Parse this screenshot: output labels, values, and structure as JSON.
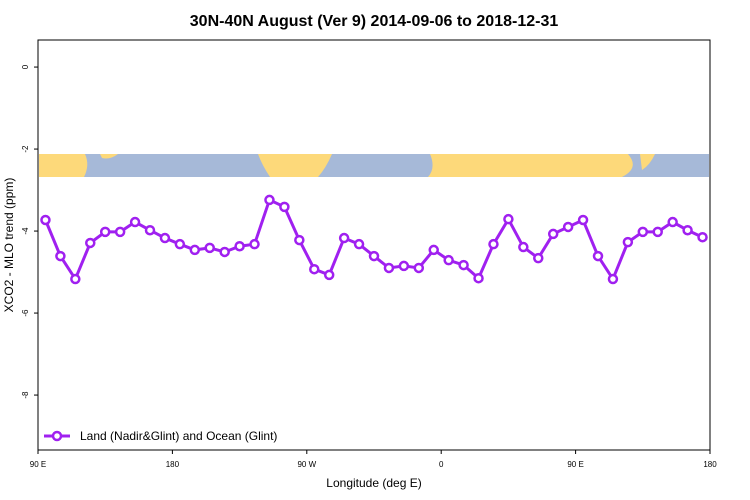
{
  "chart_data": {
    "type": "line",
    "title": "30N-40N August (Ver 9)   2014-09-06 to 2018-12-31",
    "x_label": "Longitude (deg E)",
    "y_label": "XCO2 - MLO trend (ppm)",
    "x": [
      95,
      105,
      115,
      125,
      135,
      145,
      155,
      165,
      175,
      185,
      195,
      205,
      215,
      225,
      235,
      245,
      255,
      265,
      275,
      285,
      295,
      305,
      315,
      325,
      335,
      345,
      355,
      365,
      375,
      385,
      395,
      405,
      415,
      425,
      435,
      445,
      455,
      465,
      475,
      485,
      495,
      505,
      515,
      525,
      535
    ],
    "series": [
      {
        "name": "Land (Nadir&Glint) and Ocean (Glint)",
        "color": "#a020f0",
        "values": [
          -3.73,
          -4.61,
          -5.17,
          -4.29,
          -4.02,
          -4.02,
          -3.78,
          -3.98,
          -4.17,
          -4.32,
          -4.46,
          -4.41,
          -4.51,
          -4.37,
          -4.32,
          -3.24,
          -3.41,
          -4.22,
          -4.93,
          -5.07,
          -4.17,
          -4.32,
          -4.61,
          -4.9,
          -4.85,
          -4.9,
          -4.46,
          -4.71,
          -4.83,
          -5.15,
          -4.32,
          -3.71,
          -4.39,
          -4.66,
          -4.07,
          -3.9,
          -3.73,
          -4.61,
          -5.17,
          -4.27,
          -4.02,
          -4.02,
          -3.78,
          -3.98,
          -4.15
        ]
      }
    ],
    "xlim": [
      90,
      540
    ],
    "xticks": [
      {
        "value": 90,
        "label": "90 E"
      },
      180,
      {
        "value": 270,
        "label": "90 W"
      },
      {
        "value": 360,
        "label": "0"
      },
      {
        "value": 450,
        "label": "90 E"
      },
      {
        "value": 540,
        "label": "180"
      }
    ],
    "ylim": [
      -9.34,
      0.66
    ],
    "yticks": [
      0,
      -2,
      -4,
      -6,
      -8
    ],
    "legend": "bottom-left"
  }
}
